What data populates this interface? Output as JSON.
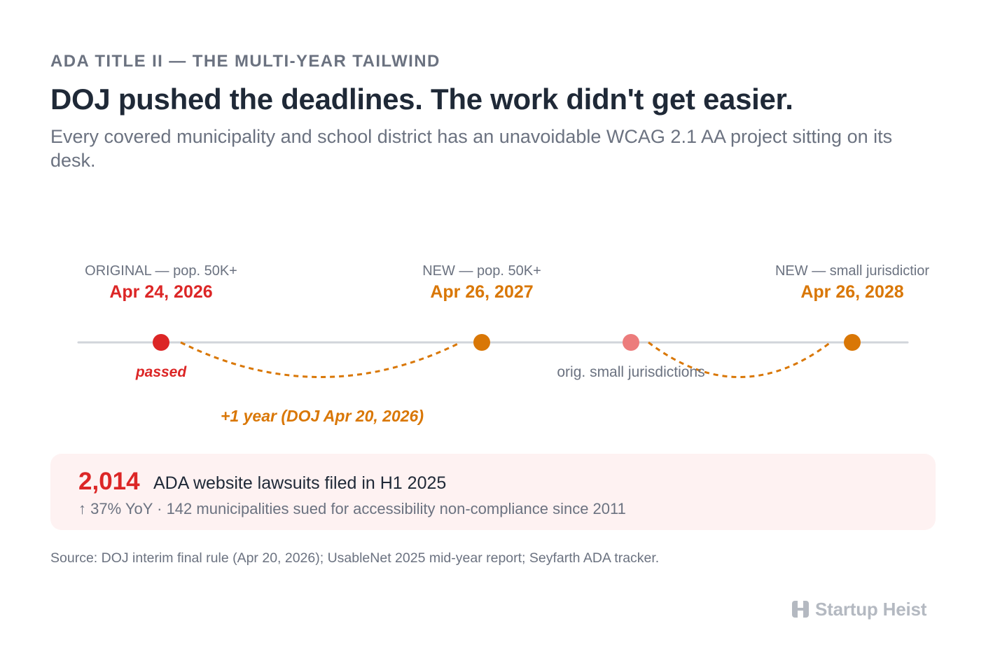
{
  "header": {
    "kicker": "ADA TITLE II — THE MULTI-YEAR TAILWIND",
    "title": "DOJ pushed the deadlines. The work didn't get easier.",
    "subtitle": "Every covered municipality and school district has an unavoidable WCAG 2.1 AA project sitting on its desk."
  },
  "timeline": {
    "milestones": [
      {
        "label": "ORIGINAL — pop. 50K+",
        "date": "Apr 24, 2026",
        "status": "passed",
        "color": "#dc2626"
      },
      {
        "label": "NEW — pop. 50K+",
        "date": "Apr 26, 2027",
        "color": "#d97706"
      },
      {
        "label": "NEW — small jurisdictior",
        "date": "Apr 26, 2028",
        "color": "#d97706"
      }
    ],
    "passed_note": "passed",
    "orig_small_note": "orig. small jurisdictions",
    "shift_note": "+1 year (DOJ Apr 20, 2026)",
    "colors": {
      "axis": "#d1d5db",
      "past": "#dc2626",
      "future": "#d97706",
      "faded": "#ec7c7c"
    }
  },
  "stat": {
    "number": "2,014",
    "text": "ADA website lawsuits filed in H1 2025",
    "detail": "↑ 37% YoY · 142 municipalities sued for accessibility non-compliance since 2011"
  },
  "source": "Source: DOJ interim final rule (Apr 20, 2026); UsableNet 2025 mid-year report; Seyfarth ADA tracker.",
  "brand": {
    "name": "Startup Heist",
    "icon": "building-logo-icon"
  }
}
